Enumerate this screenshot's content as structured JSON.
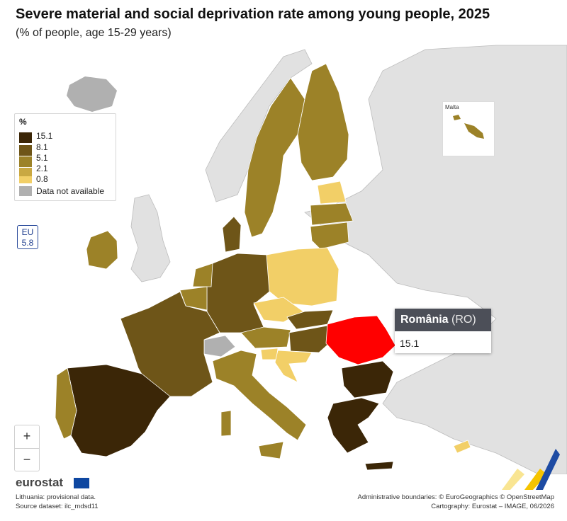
{
  "title": "Severe material and social deprivation rate among young people, 2025",
  "subtitle": "(% of people, age 15-29 years)",
  "legend": {
    "header": "%",
    "classes": [
      {
        "label": "15.1",
        "color": "#3b2607"
      },
      {
        "label": "8.1",
        "color": "#6e5518"
      },
      {
        "label": "5.1",
        "color": "#9c8228"
      },
      {
        "label": "2.1",
        "color": "#c9a842"
      },
      {
        "label": "0.8",
        "color": "#f2cf67"
      }
    ],
    "na_label": "Data not available",
    "na_color": "#b0b0b0"
  },
  "eu": {
    "label": "EU",
    "value": "5.8"
  },
  "zoom": {
    "in": "+",
    "out": "−"
  },
  "inset": {
    "label": "Malta"
  },
  "tooltip": {
    "country": "România",
    "code": "(RO)",
    "value": "15.1"
  },
  "highlight_color": "#ff0000",
  "footer": {
    "brand": "eurostat",
    "note1": "Lithuania: provisional data.",
    "note2": "Source dataset: ilc_mdsd11",
    "credit1": "Administrative boundaries: © EuroGeographics © OpenStreetMap",
    "credit2": "Cartography: Eurostat – IMAGE, 06/2026"
  }
}
